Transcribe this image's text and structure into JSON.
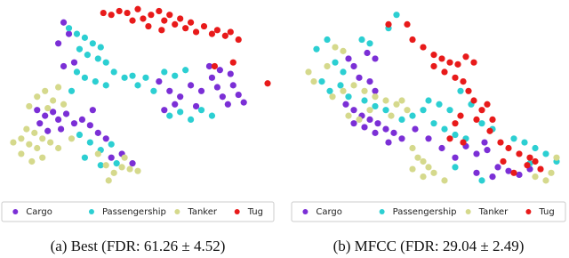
{
  "chart_data": [
    {
      "type": "scatter",
      "title": "(a) Best (FDR: 61.26 ± 4.52)",
      "xlim": [
        0,
        100
      ],
      "ylim": [
        0,
        100
      ],
      "series": [
        {
          "name": "Cargo",
          "color": "#7b2fd6",
          "x": [
            22,
            24,
            20,
            26,
            22,
            12,
            15,
            18,
            20,
            23,
            26,
            13,
            16,
            21,
            29,
            32,
            35,
            38,
            33,
            58,
            62,
            66,
            70,
            74,
            78,
            80,
            82,
            84,
            86,
            88,
            90,
            77,
            81,
            85,
            72,
            60,
            64,
            44,
            48,
            40
          ],
          "y": [
            91,
            85,
            80,
            70,
            68,
            45,
            42,
            44,
            40,
            43,
            38,
            38,
            34,
            35,
            40,
            37,
            33,
            30,
            45,
            60,
            55,
            52,
            58,
            55,
            62,
            57,
            52,
            48,
            58,
            53,
            49,
            68,
            66,
            64,
            47,
            45,
            48,
            22,
            17,
            20
          ]
        },
        {
          "name": "Passengership",
          "color": "#2ccfd2",
          "x": [
            24,
            27,
            30,
            33,
            36,
            28,
            31,
            35,
            38,
            27,
            30,
            34,
            38,
            41,
            45,
            48,
            50,
            53,
            56,
            62,
            66,
            70,
            74,
            78,
            60,
            64,
            68,
            28,
            32,
            36,
            40,
            42,
            36,
            30,
            25
          ],
          "y": [
            88,
            85,
            83,
            80,
            78,
            77,
            74,
            72,
            70,
            65,
            62,
            60,
            58,
            65,
            62,
            63,
            58,
            62,
            55,
            42,
            44,
            40,
            45,
            42,
            65,
            63,
            66,
            32,
            28,
            24,
            27,
            17,
            16,
            20,
            55
          ]
        },
        {
          "name": "Tanker",
          "color": "#d5d98c",
          "x": [
            3,
            6,
            9,
            12,
            6,
            10,
            14,
            8,
            11,
            14,
            17,
            12,
            15,
            18,
            9,
            20,
            22,
            16,
            35,
            38,
            41,
            44,
            47,
            50,
            39,
            45,
            20,
            25
          ],
          "y": [
            28,
            30,
            27,
            25,
            22,
            18,
            20,
            35,
            33,
            30,
            28,
            52,
            55,
            50,
            47,
            57,
            48,
            46,
            22,
            16,
            12,
            15,
            14,
            13,
            8,
            20,
            25,
            30
          ]
        },
        {
          "name": "Tug",
          "color": "#e81a1a",
          "x": [
            37,
            40,
            43,
            46,
            50,
            52,
            55,
            58,
            60,
            62,
            64,
            66,
            68,
            70,
            72,
            75,
            78,
            80,
            83,
            85,
            88,
            54,
            59,
            48,
            86,
            79,
            99
          ],
          "y": [
            96,
            95,
            97,
            96,
            98,
            93,
            95,
            97,
            92,
            95,
            90,
            93,
            88,
            91,
            86,
            89,
            85,
            87,
            84,
            86,
            82,
            89,
            87,
            92,
            70,
            68,
            59
          ]
        }
      ]
    },
    {
      "type": "scatter",
      "title": "(b) MFCC (FDR: 29.04 ± 2.49)",
      "xlim": [
        0,
        100
      ],
      "ylim": [
        0,
        100
      ],
      "series": [
        {
          "name": "Cargo",
          "color": "#7b2fd6",
          "x": [
            20,
            22,
            27,
            30,
            24,
            28,
            30,
            19,
            22,
            25,
            28,
            31,
            34,
            37,
            22,
            26,
            30,
            35,
            40,
            45,
            50,
            55,
            60,
            64,
            68,
            72,
            76,
            80,
            84,
            88,
            74,
            68,
            71
          ],
          "y": [
            72,
            68,
            75,
            72,
            62,
            60,
            55,
            48,
            45,
            42,
            40,
            38,
            35,
            33,
            38,
            36,
            33,
            28,
            30,
            35,
            30,
            25,
            20,
            26,
            22,
            24,
            15,
            13,
            11,
            14,
            10,
            12,
            28
          ]
        },
        {
          "name": "Passengership",
          "color": "#2ccfd2",
          "x": [
            8,
            12,
            15,
            18,
            25,
            28,
            35,
            38,
            10,
            13,
            17,
            20,
            26,
            30,
            34,
            40,
            44,
            48,
            52,
            56,
            60,
            64,
            50,
            54,
            58,
            62,
            66,
            70,
            74,
            82,
            86,
            90,
            94,
            88,
            98,
            70,
            60
          ],
          "y": [
            77,
            82,
            70,
            65,
            82,
            80,
            88,
            95,
            60,
            55,
            58,
            52,
            50,
            47,
            45,
            40,
            42,
            45,
            38,
            35,
            32,
            30,
            50,
            48,
            45,
            55,
            48,
            38,
            35,
            30,
            28,
            25,
            22,
            17,
            18,
            8,
            15
          ]
        },
        {
          "name": "Tanker",
          "color": "#d5d98c",
          "x": [
            5,
            7,
            12,
            15,
            18,
            14,
            18,
            22,
            26,
            30,
            34,
            38,
            42,
            20,
            24,
            28,
            36,
            40,
            44,
            46,
            48,
            50,
            52,
            48,
            56,
            44,
            94,
            96,
            90,
            98
          ],
          "y": [
            65,
            60,
            68,
            78,
            76,
            52,
            55,
            58,
            55,
            52,
            50,
            48,
            45,
            42,
            40,
            45,
            42,
            50,
            25,
            20,
            18,
            15,
            12,
            10,
            8,
            14,
            8,
            12,
            10,
            20
          ]
        },
        {
          "name": "Tug",
          "color": "#e81a1a",
          "x": [
            42,
            44,
            48,
            52,
            55,
            58,
            61,
            64,
            67,
            52,
            56,
            60,
            63,
            65,
            67,
            70,
            72,
            68,
            62,
            60,
            74,
            73,
            58,
            63,
            77,
            80,
            84,
            88,
            90,
            87,
            82,
            92,
            78,
            35
          ],
          "y": [
            90,
            82,
            78,
            74,
            72,
            70,
            69,
            73,
            70,
            68,
            65,
            62,
            60,
            55,
            50,
            45,
            48,
            40,
            42,
            38,
            40,
            34,
            30,
            28,
            28,
            25,
            22,
            20,
            18,
            16,
            12,
            14,
            18,
            90
          ]
        }
      ]
    }
  ]
}
